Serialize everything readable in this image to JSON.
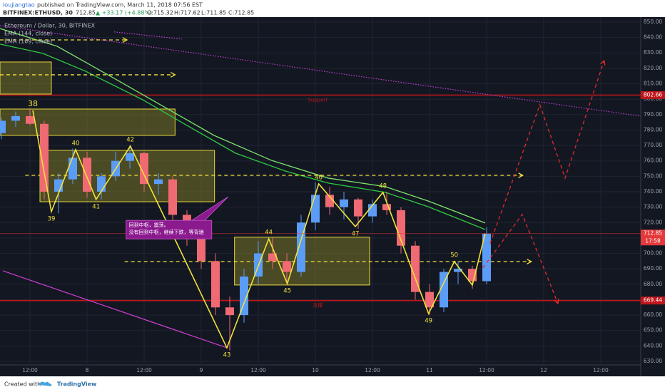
{
  "header": {
    "author": "loujiangtao",
    "published": "published on TradingView.com, March 11, 2018 07:56 EST",
    "symbol": "BITFINEX:ETHUSD, 30",
    "last": "712.85",
    "change": "▲ +33.17 (+4.88%)",
    "open": "O:715.32",
    "high": "H:717.62",
    "low": "L:711.85",
    "close": "C:712.85"
  },
  "footer": {
    "created": "Created with",
    "brand": "TradingView"
  },
  "chart_data": {
    "type": "candlestick",
    "title": "Ethereum / Dollar, 30, BITFINEX",
    "up_color": "#5b9cf6",
    "down_color": "#ef6a73",
    "xlim": [
      5.7,
      140.4
    ],
    "ylim": [
      627.7,
      853.2
    ],
    "grid": true,
    "xticks": [
      {
        "value": 12,
        "label": "12:00"
      },
      {
        "value": 24,
        "label": "8"
      },
      {
        "value": 36,
        "label": "12:00"
      },
      {
        "value": 48,
        "label": "9"
      },
      {
        "value": 60,
        "label": "12:00"
      },
      {
        "value": 72,
        "label": "10"
      },
      {
        "value": 84,
        "label": "12:00"
      },
      {
        "value": 96,
        "label": "11"
      },
      {
        "value": 108,
        "label": "12:00"
      },
      {
        "value": 120,
        "label": "12"
      },
      {
        "value": 132,
        "label": "12:00"
      }
    ],
    "yticks": [
      {
        "value": 630,
        "label": "630.00"
      },
      {
        "value": 640,
        "label": "640.00"
      },
      {
        "value": 650,
        "label": "650.00"
      },
      {
        "value": 660,
        "label": "660.00"
      },
      {
        "value": 670,
        "label": "670.00"
      },
      {
        "value": 680,
        "label": "680.00"
      },
      {
        "value": 690,
        "label": "690.00"
      },
      {
        "value": 700,
        "label": "700.00"
      },
      {
        "value": 710,
        "label": "710.00"
      },
      {
        "value": 720,
        "label": "720.00"
      },
      {
        "value": 730,
        "label": "730.00"
      },
      {
        "value": 740,
        "label": "740.00"
      },
      {
        "value": 750,
        "label": "750.00"
      },
      {
        "value": 760,
        "label": "760.00"
      },
      {
        "value": 770,
        "label": "770.00"
      },
      {
        "value": 780,
        "label": "780.00"
      },
      {
        "value": 790,
        "label": "790.00"
      },
      {
        "value": 800,
        "label": "800.00"
      },
      {
        "value": 810,
        "label": "810.00"
      },
      {
        "value": 820,
        "label": "820.00"
      },
      {
        "value": 830,
        "label": "830.00"
      },
      {
        "value": 840,
        "label": "840.00"
      },
      {
        "value": 850,
        "label": "850.00"
      }
    ],
    "x": [
      6,
      9,
      12,
      15,
      18,
      21,
      24,
      27,
      30,
      33,
      36,
      39,
      42,
      45,
      48,
      51,
      54,
      57,
      60,
      63,
      66,
      69,
      72,
      75,
      78,
      81,
      84,
      87,
      90,
      93,
      96,
      99,
      102,
      105,
      108
    ],
    "open": [
      778,
      786,
      789,
      784,
      740,
      748,
      762,
      740,
      750,
      760,
      765,
      745,
      748,
      725,
      710,
      695,
      665,
      660,
      685,
      700,
      695,
      688,
      720,
      738,
      730,
      735,
      724,
      732,
      728,
      705,
      675,
      665,
      688,
      690,
      682
    ],
    "high": [
      788,
      792,
      794,
      786,
      752,
      768,
      766,
      752,
      766,
      770,
      766,
      752,
      750,
      728,
      712,
      700,
      672,
      690,
      708,
      710,
      700,
      725,
      746,
      743,
      740,
      736,
      735,
      740,
      730,
      708,
      680,
      690,
      695,
      692,
      717
    ],
    "low": [
      774,
      782,
      783,
      735,
      726,
      745,
      736,
      735,
      747,
      755,
      740,
      738,
      720,
      705,
      690,
      660,
      637,
      655,
      680,
      690,
      680,
      685,
      715,
      725,
      722,
      716,
      720,
      725,
      700,
      670,
      660,
      662,
      680,
      677,
      680
    ],
    "close": [
      786,
      789,
      784,
      740,
      748,
      762,
      740,
      750,
      760,
      765,
      745,
      748,
      725,
      710,
      695,
      665,
      660,
      685,
      700,
      695,
      688,
      720,
      738,
      730,
      735,
      724,
      732,
      728,
      705,
      675,
      665,
      688,
      690,
      682,
      712.85
    ],
    "series": [
      {
        "name": "EMA (144, close)",
        "color": "#2ecc40",
        "x": [
          5.7,
          14.7,
          23.7,
          35.7,
          44.7,
          55.2,
          65.7,
          74.7,
          86.7,
          95.7,
          107.7
        ],
        "values": [
          835.7,
          829.7,
          818.1,
          799.6,
          783.5,
          765.0,
          753.4,
          745.6,
          739.6,
          730.3,
          715.5
        ]
      },
      {
        "name": "EMA (169, close)",
        "color": "#7ee26b",
        "x": [
          5.7,
          17.7,
          29.7,
          40.2,
          50.7,
          62.7,
          74.7,
          86.7,
          95.7,
          107.7
        ],
        "values": [
          845.8,
          834.3,
          813.5,
          795.0,
          776.5,
          760.4,
          748.8,
          743.3,
          734.0,
          719.7
        ]
      }
    ],
    "wave": {
      "color": "#f2e23a",
      "x": [
        12.6,
        16.5,
        21.6,
        25.9,
        33.1,
        53.4,
        62.2,
        66.1,
        72.7,
        80.4,
        86.2,
        95.8,
        101.2,
        105.0,
        107.7
      ],
      "values": [
        792.7,
        727.1,
        767.3,
        735.0,
        769.6,
        638.8,
        709.5,
        680.4,
        745.1,
        717.4,
        739.6,
        661.0,
        694.7,
        679.5,
        713.0
      ],
      "labels": [
        "38",
        "39",
        "40",
        "41",
        "42",
        "43",
        "44",
        "45",
        "46",
        "47",
        "48",
        "49",
        "50",
        null,
        null
      ]
    },
    "zones": [
      {
        "color": "#8f8a2a",
        "x": [
          5.7,
          16.5
        ],
        "y": [
          803.3,
          824.1
        ]
      },
      {
        "color": "#8f8a2a",
        "x": [
          5.7,
          42.5
        ],
        "y": [
          776.5,
          793.6
        ]
      },
      {
        "color": "#8f8a2a",
        "x": [
          14.1,
          50.8
        ],
        "y": [
          733.5,
          766.8
        ]
      },
      {
        "color": "#8f8a2a",
        "x": [
          55.0,
          83.4
        ],
        "y": [
          679.5,
          710.5
        ]
      }
    ],
    "guides": [
      {
        "color": "#f2e23a",
        "x": [
          5.7,
          32.4
        ],
        "value": 838.4
      },
      {
        "color": "#f2e23a",
        "x": [
          5.7,
          42.5
        ],
        "value": 815.8
      },
      {
        "color": "#f2e23a",
        "x": [
          11.0,
          115.6
        ],
        "value": 750.6
      },
      {
        "color": "#f2e23a",
        "x": [
          31.9,
          117.4
        ],
        "value": 694.7
      }
    ],
    "projections": [
      {
        "color": "#e02b2b",
        "x": [
          107.2,
          115.5,
          123.0
        ],
        "values": [
          690.6,
          725.3,
          667.5
        ]
      },
      {
        "color": "#e02b2b",
        "x": [
          108.7,
          119.2,
          124.5,
          132.7
        ],
        "values": [
          706.3,
          796.4,
          748.8,
          825.0
        ]
      }
    ],
    "trendlines": [
      {
        "color": "#c040d0",
        "style": "dotted",
        "x": [
          5.7,
          140.4
        ],
        "values": [
          847.7,
          789.0
        ]
      },
      {
        "color": "#c040d0",
        "style": "dotted",
        "x": [
          29.7,
          43.9
        ],
        "values": [
          843.6,
          839.0
        ]
      },
      {
        "color": "#d23fd2",
        "style": "solid",
        "x": [
          6.3,
          53.4
        ],
        "values": [
          688.7,
          638.8
        ]
      }
    ],
    "levels": [
      {
        "value": 802.66,
        "label": "802.66",
        "color": "#c0161b",
        "text": "Support",
        "text_x": 72.5
      },
      {
        "value": 669.44,
        "label": "669.44",
        "color": "#c0161b",
        "text": "支撑",
        "text_x": 72.5
      }
    ],
    "last_price": {
      "value": 712.85,
      "label": "712.85",
      "countdown": "17:58",
      "color": "#e5383b"
    },
    "annotation": {
      "lines": [
        "回到中枢，震荡。",
        "没有回到中枢，继续下跌，等背驰"
      ],
      "x": 32.2,
      "y": 721.4
    }
  }
}
